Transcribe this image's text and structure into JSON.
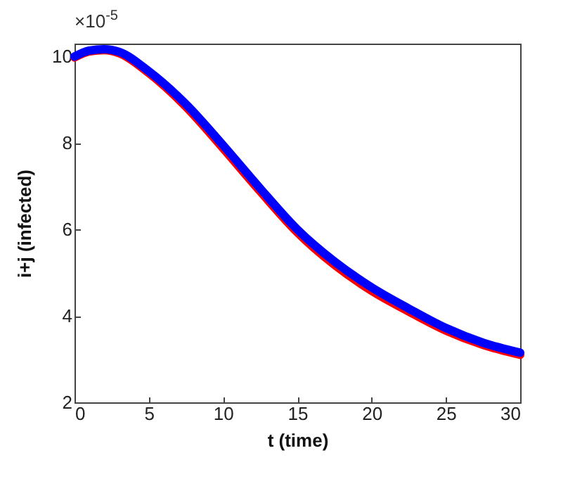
{
  "chart_data": {
    "type": "line",
    "xlabel": "t (time)",
    "ylabel": "i+j (infected)",
    "annotations": [
      "×10$^{-5}$"
    ],
    "x": [
      0,
      1,
      2,
      3,
      5,
      7.5,
      10,
      12.5,
      15,
      17.5,
      20,
      22.5,
      25,
      27.5,
      30
    ],
    "series": [
      {
        "color": "#ff0000",
        "values": [
          9.98,
          10.12,
          10.15,
          10.08,
          9.62,
          8.84,
          7.88,
          6.88,
          5.93,
          5.18,
          4.58,
          4.1,
          3.66,
          3.33,
          3.1
        ]
      },
      {
        "color": "#0000ff",
        "values": [
          10.0,
          10.14,
          10.17,
          10.11,
          9.66,
          8.9,
          7.95,
          6.95,
          6.0,
          5.26,
          4.66,
          4.17,
          3.72,
          3.38,
          3.15
        ]
      }
    ],
    "xlim": [
      0,
      30
    ],
    "xticks": [
      0,
      5,
      10,
      15,
      20,
      25,
      30
    ],
    "ylim": [
      2,
      10.3
    ],
    "yticks": [
      2,
      4,
      6,
      8,
      10
    ],
    "grid": false,
    "marker": "none",
    "line_style": "solid"
  }
}
